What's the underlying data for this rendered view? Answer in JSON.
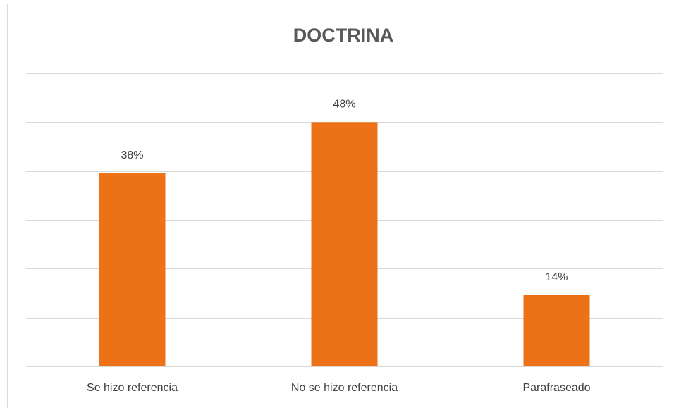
{
  "chart_data": {
    "type": "bar",
    "title": "DOCTRINA",
    "categories": [
      "Se hizo referencia",
      "No se hizo referencia",
      "Parafraseado"
    ],
    "values": [
      38,
      48,
      14
    ],
    "value_labels": [
      "38%",
      "48%",
      "14%"
    ],
    "color": "#ed7117",
    "ylim": [
      0,
      57.6
    ],
    "yticks": [
      0,
      9.6,
      19.2,
      28.8,
      38.4,
      48,
      57.6
    ],
    "grid": true
  }
}
